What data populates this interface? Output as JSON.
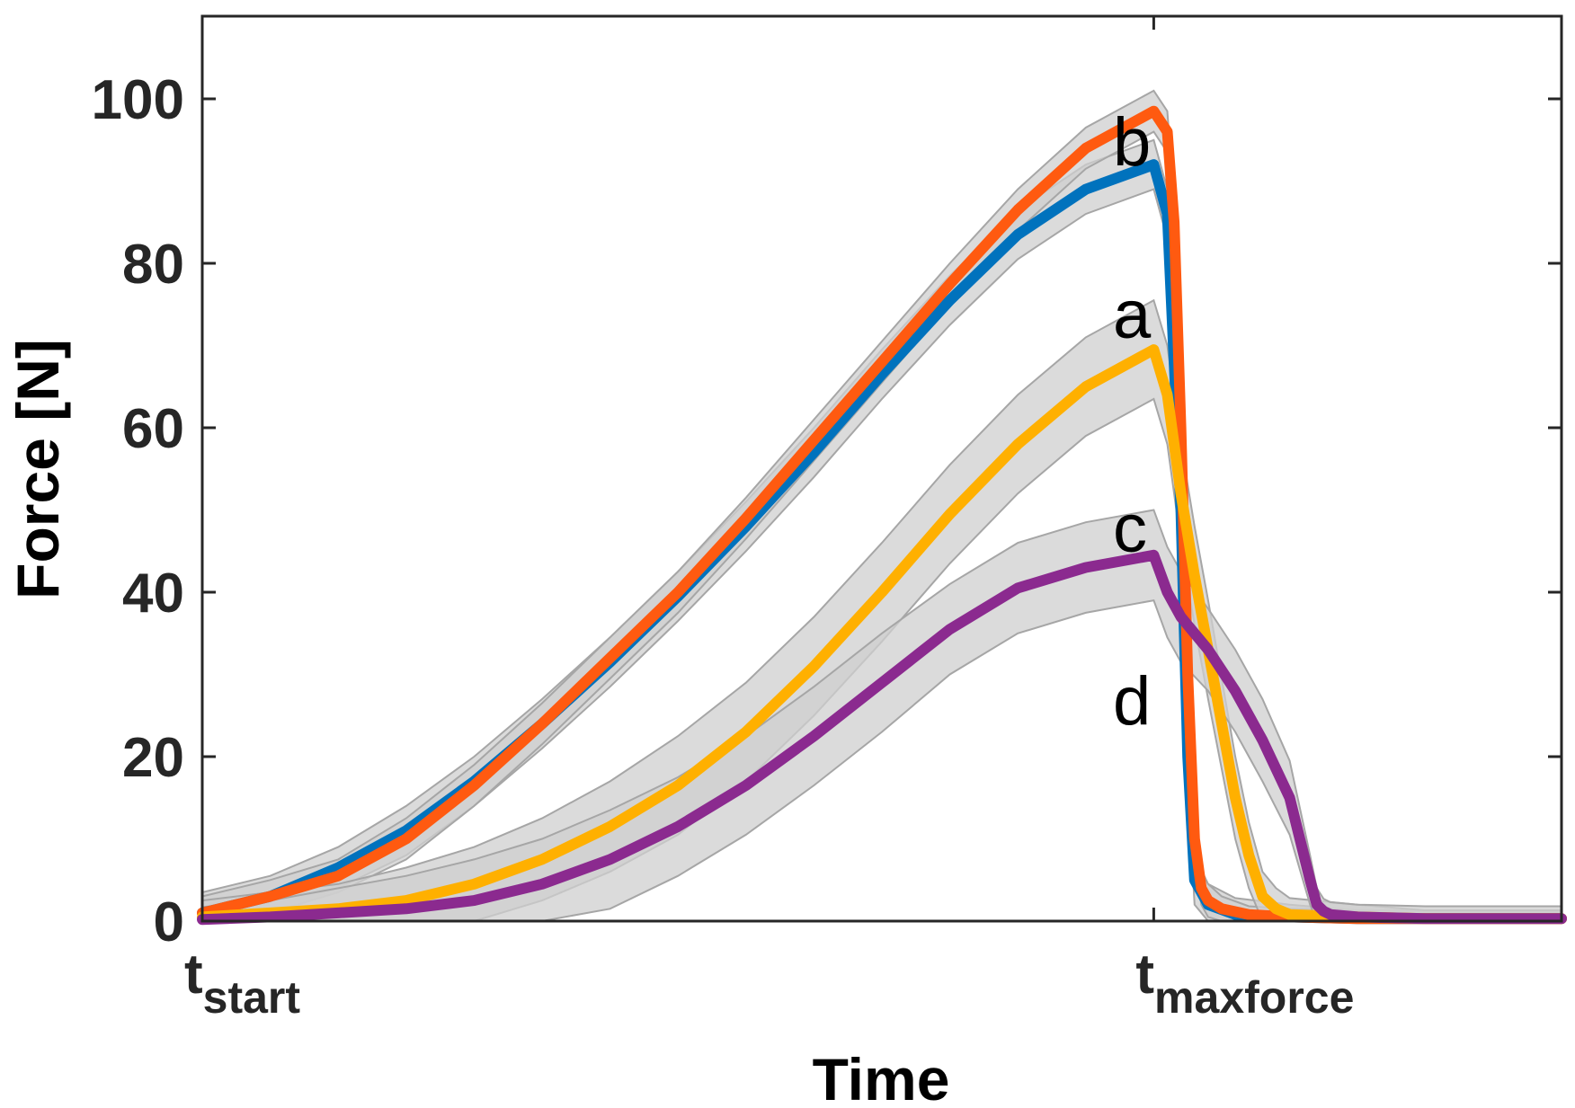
{
  "chart_data": {
    "type": "line",
    "title": "",
    "xlabel": "Time",
    "ylabel": "Force [N]",
    "xlim": [
      0,
      1
    ],
    "ylim": [
      0,
      110
    ],
    "yticks": [
      0,
      20,
      40,
      60,
      80,
      100
    ],
    "xticks": [
      {
        "x": 0.0,
        "main": "t",
        "sub": "start"
      },
      {
        "x": 0.7,
        "main": "t",
        "sub": "maxforce"
      }
    ],
    "grid": false,
    "band_color": "#cfcfcf",
    "band_edge_color": "#a6a6a6",
    "series": [
      {
        "name": "a",
        "color": "#0072BD",
        "x": [
          0,
          0.05,
          0.1,
          0.15,
          0.2,
          0.25,
          0.3,
          0.35,
          0.4,
          0.45,
          0.5,
          0.55,
          0.6,
          0.65,
          0.7,
          0.71,
          0.72,
          0.725,
          0.73,
          0.74,
          0.76,
          0.8,
          0.85,
          0.9,
          0.95,
          1.0
        ],
        "y": [
          1,
          3,
          6.5,
          11,
          17,
          24,
          31.5,
          39.5,
          48,
          57,
          66.5,
          75.5,
          83.5,
          89,
          92,
          86,
          50,
          20,
          5,
          2,
          0.8,
          0.5,
          0.3,
          0.3,
          0.3,
          0.3
        ],
        "band": [
          2.5,
          2.5,
          2.5,
          3,
          3,
          3,
          3,
          3,
          3,
          3,
          3,
          3,
          3,
          3,
          3,
          3,
          3,
          3,
          3,
          2.5,
          2,
          1.5,
          1,
          1,
          1,
          1
        ]
      },
      {
        "name": "b",
        "color": "#FF5A10",
        "x": [
          0,
          0.05,
          0.1,
          0.15,
          0.2,
          0.25,
          0.3,
          0.35,
          0.4,
          0.45,
          0.5,
          0.55,
          0.6,
          0.65,
          0.7,
          0.71,
          0.715,
          0.72,
          0.725,
          0.73,
          0.735,
          0.74,
          0.75,
          0.77,
          0.8,
          0.85,
          0.9,
          0.95,
          1.0
        ],
        "y": [
          1,
          3,
          5.5,
          10,
          16.5,
          24,
          32,
          40,
          49,
          58.5,
          68,
          77.5,
          86.5,
          94,
          98.5,
          96,
          85,
          60,
          30,
          10,
          4,
          2.5,
          1.5,
          0.8,
          0.5,
          0.3,
          0.3,
          0.3,
          0.3
        ],
        "band": [
          2,
          2,
          2,
          2.5,
          2.5,
          2.5,
          2.5,
          2.5,
          2.5,
          2.5,
          2.5,
          2.5,
          2.5,
          2.5,
          2.5,
          2.5,
          2.5,
          2.5,
          2.5,
          2.5,
          2,
          2,
          1.5,
          1,
          1,
          1,
          1,
          1,
          1
        ]
      },
      {
        "name": "c",
        "color": "#FFB000",
        "x": [
          0,
          0.05,
          0.1,
          0.15,
          0.2,
          0.25,
          0.3,
          0.35,
          0.4,
          0.45,
          0.5,
          0.55,
          0.6,
          0.65,
          0.7,
          0.71,
          0.72,
          0.73,
          0.74,
          0.75,
          0.76,
          0.77,
          0.78,
          0.79,
          0.8,
          0.85,
          0.9,
          0.95,
          1.0
        ],
        "y": [
          0.5,
          1,
          1.5,
          2.5,
          4.5,
          7.5,
          11.5,
          16.5,
          23,
          31,
          40,
          49.5,
          58,
          65,
          69.5,
          64,
          52,
          42,
          33,
          24,
          15,
          8,
          3,
          1.5,
          0.8,
          0.5,
          0.3,
          0.3,
          0.3
        ],
        "band": [
          2,
          2.5,
          3,
          4,
          4.5,
          5,
          5.5,
          6,
          6,
          6,
          6,
          6,
          6,
          6,
          6,
          6,
          6,
          6,
          6,
          5.5,
          5,
          4,
          3,
          2.5,
          2,
          1.5,
          1,
          1,
          1
        ]
      },
      {
        "name": "d",
        "color": "#8B2A8F",
        "x": [
          0,
          0.05,
          0.1,
          0.15,
          0.2,
          0.25,
          0.3,
          0.35,
          0.4,
          0.45,
          0.5,
          0.55,
          0.6,
          0.65,
          0.7,
          0.71,
          0.72,
          0.74,
          0.76,
          0.78,
          0.8,
          0.815,
          0.82,
          0.825,
          0.83,
          0.85,
          0.9,
          0.95,
          1.0
        ],
        "y": [
          0.2,
          0.5,
          1,
          1.5,
          2.5,
          4.5,
          7.5,
          11.5,
          16.5,
          22.5,
          29,
          35.5,
          40.5,
          43,
          44.5,
          40,
          37,
          33,
          28,
          22,
          15,
          5,
          2,
          1.2,
          0.8,
          0.5,
          0.3,
          0.3,
          0.3
        ],
        "band": [
          1.5,
          2,
          3,
          4,
          5,
          5.5,
          6,
          6,
          6,
          6,
          6,
          5.5,
          5.5,
          5.5,
          5.5,
          5.5,
          5.5,
          5,
          5,
          5,
          4.5,
          3,
          2,
          1.5,
          1.5,
          1.5,
          1.5,
          1.5,
          1.5
        ]
      }
    ],
    "annotations": [
      {
        "text": "b",
        "x": 0.67,
        "y": 95
      },
      {
        "text": "a",
        "x": 0.67,
        "y": 74
      },
      {
        "text": "c",
        "x": 0.67,
        "y": 48
      },
      {
        "text": "d",
        "x": 0.67,
        "y": 27
      }
    ]
  }
}
